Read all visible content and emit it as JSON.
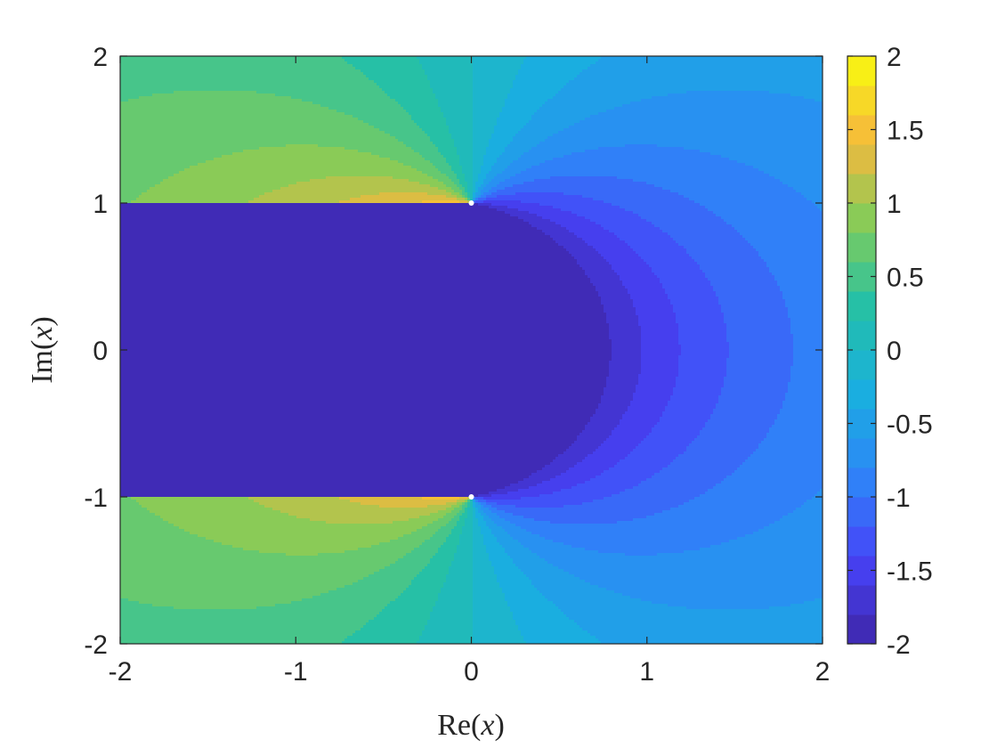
{
  "chart_data": {
    "type": "heatmap",
    "subtype": "filled-contour",
    "title": "",
    "xlabel": {
      "func": "Re",
      "open": "(",
      "var": "x",
      "close": ")"
    },
    "ylabel": {
      "func": "Im",
      "open": "(",
      "var": "x",
      "close": ")"
    },
    "xlim": [
      -2,
      2
    ],
    "ylim": [
      -2,
      2
    ],
    "xticks": [
      -2,
      -1,
      0,
      1,
      2
    ],
    "yticks": [
      -2,
      -1,
      0,
      1,
      2
    ],
    "xtick_labels": [
      "-2",
      "-1",
      "0",
      "1",
      "2"
    ],
    "ytick_labels": [
      "-2",
      "-1",
      "0",
      "1",
      "2"
    ],
    "colorbar": {
      "limits": [
        -2,
        2
      ],
      "ticks": [
        -2,
        -1.5,
        -1,
        -0.5,
        0,
        0.5,
        1,
        1.5,
        2
      ],
      "tick_labels": [
        "-2",
        "-1.5",
        "-1",
        "-0.5",
        "0",
        "0.5",
        "1",
        "1.5",
        "2"
      ],
      "colormap": "parula",
      "levels": 20
    },
    "singular_points": [
      {
        "re": 0,
        "im": 1
      },
      {
        "re": 0,
        "im": -1
      }
    ],
    "branch_cuts": [
      {
        "re": 0,
        "im_from": 1,
        "im_to": 2
      },
      {
        "re": 0,
        "im_from": -1,
        "im_to": -2
      }
    ],
    "grid": false,
    "legend": "none",
    "colors": {
      "parula": [
        "#3e26a8",
        "#4743f8",
        "#2e85f8",
        "#19afdf",
        "#24c0a8",
        "#81cc59",
        "#f6b83d",
        "#f9fb0e"
      ]
    }
  }
}
